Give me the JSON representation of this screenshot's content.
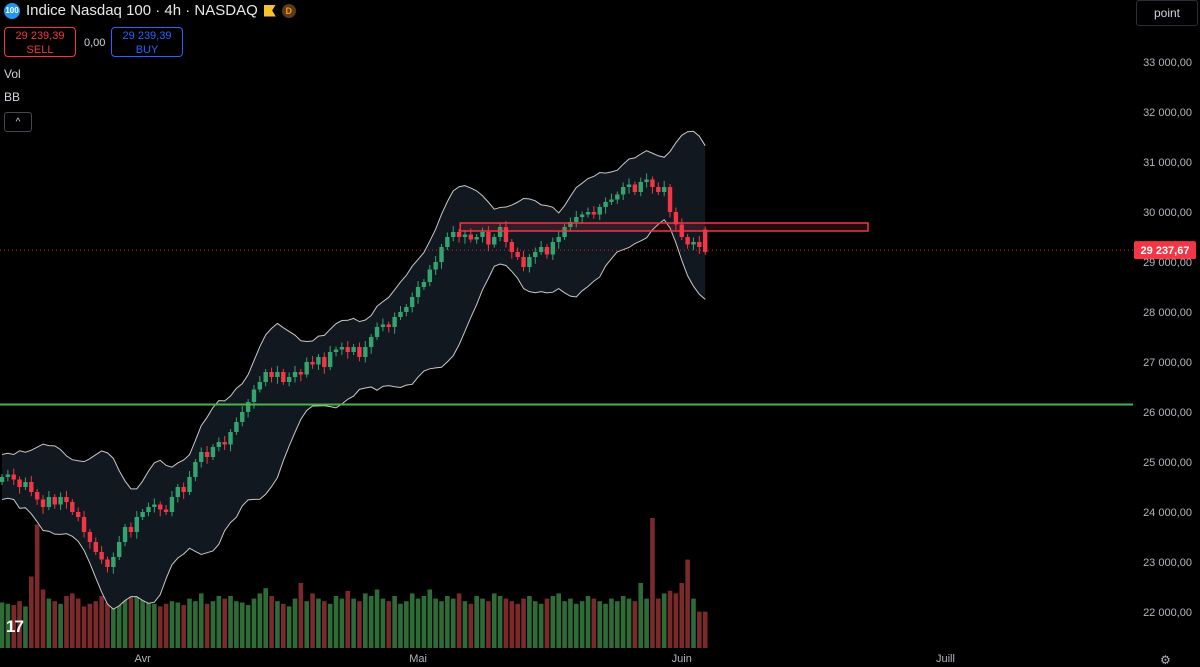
{
  "header": {
    "logo_text": "100",
    "title": "Indice Nasdaq 100 · 4h · NASDAQ",
    "badge": "D",
    "sell_price": "29 239,39",
    "sell_label": "SELL",
    "spread": "0,00",
    "buy_price": "29 239,39",
    "buy_label": "BUY"
  },
  "indicators": {
    "vol": "Vol",
    "bb": "BB",
    "collapse": "^"
  },
  "price_axis": {
    "unit": "point"
  },
  "tv_logo": "17",
  "colors": {
    "up": "#33a46f",
    "down": "#f23645",
    "vol_up": "#2f6b37",
    "vol_down": "#7a2a2a",
    "band": "#c8c8c8",
    "band_fill": "#121820",
    "support": "#4caf50",
    "zone": "#f23645",
    "bg": "#000000"
  },
  "chart_data": {
    "type": "candlestick",
    "title": "Indice Nasdaq 100 · 4h · NASDAQ",
    "ylim": [
      21400,
      33700
    ],
    "y_ticks": [
      "33 000,00",
      "32 000,00",
      "31 000,00",
      "30 000,00",
      "29 000,00",
      "28 000,00",
      "27 000,00",
      "26 000,00",
      "25 000,00",
      "24 000,00",
      "23 000,00",
      "22 000,00"
    ],
    "y_tick_values": [
      33000,
      32000,
      31000,
      30000,
      29000,
      28000,
      27000,
      26000,
      25000,
      24000,
      23000,
      22000
    ],
    "x_ticks": [
      {
        "label": "Avr",
        "bar": 24
      },
      {
        "label": "Mai",
        "bar": 71
      },
      {
        "label": "Juin",
        "bar": 116
      },
      {
        "label": "Juill",
        "bar": 161
      }
    ],
    "bars_visible": 206,
    "current_price": 29237.67,
    "current_price_label": "29 237,67",
    "support_level": 26150,
    "resistance_zone": {
      "from_bar": 84,
      "to_bar": 160,
      "low": 29620,
      "high": 29780
    },
    "closes": [
      24700,
      24750,
      24650,
      24500,
      24600,
      24400,
      24250,
      24100,
      24300,
      24150,
      24300,
      24200,
      24000,
      23900,
      23600,
      23400,
      23200,
      23050,
      22900,
      23100,
      23400,
      23700,
      23600,
      23900,
      24000,
      24100,
      24150,
      24050,
      24000,
      24300,
      24500,
      24400,
      24700,
      25000,
      25200,
      25100,
      25300,
      25400,
      25350,
      25600,
      25800,
      26000,
      26200,
      26450,
      26600,
      26800,
      26700,
      26800,
      26600,
      26700,
      26800,
      26750,
      27000,
      26950,
      27100,
      26900,
      27200,
      27250,
      27300,
      27200,
      27300,
      27100,
      27300,
      27500,
      27700,
      27750,
      27700,
      27900,
      28000,
      28100,
      28300,
      28500,
      28600,
      28850,
      29000,
      29300,
      29500,
      29600,
      29500,
      29550,
      29450,
      29500,
      29600,
      29350,
      29500,
      29700,
      29400,
      29200,
      29100,
      28900,
      29100,
      29200,
      29300,
      29150,
      29400,
      29500,
      29700,
      29800,
      29900,
      29950,
      30000,
      29950,
      30100,
      30200,
      30250,
      30350,
      30500,
      30550,
      30400,
      30600,
      30650,
      30500,
      30400,
      30500,
      30000,
      29750,
      29500,
      29350,
      29400,
      29300,
      29200
    ],
    "opens": [
      24600,
      24700,
      24750,
      24650,
      24500,
      24600,
      24400,
      24250,
      24100,
      24300,
      24150,
      24300,
      24200,
      24000,
      23900,
      23600,
      23400,
      23200,
      23050,
      22900,
      23100,
      23400,
      23700,
      23600,
      23900,
      24000,
      24100,
      24150,
      24050,
      24000,
      24300,
      24500,
      24400,
      24700,
      25000,
      25200,
      25100,
      25300,
      25400,
      25350,
      25600,
      25800,
      26000,
      26200,
      26450,
      26600,
      26800,
      26700,
      26800,
      26600,
      26700,
      26800,
      26750,
      27000,
      26950,
      27100,
      26900,
      27200,
      27250,
      27300,
      27200,
      27300,
      27100,
      27300,
      27500,
      27700,
      27750,
      27700,
      27900,
      28000,
      28100,
      28300,
      28500,
      28600,
      28850,
      29000,
      29300,
      29500,
      29600,
      29500,
      29550,
      29450,
      29500,
      29600,
      29350,
      29500,
      29700,
      29400,
      29200,
      29100,
      28900,
      29100,
      29200,
      29300,
      29150,
      29400,
      29500,
      29700,
      29800,
      29900,
      29950,
      30000,
      29950,
      30100,
      30200,
      30250,
      30350,
      30500,
      30550,
      30400,
      30600,
      30650,
      30500,
      30400,
      30500,
      30000,
      29750,
      29500,
      29350,
      29400,
      29650
    ],
    "bb_upper_start": 25200,
    "bb_upper_end": 31100,
    "volumes": [
      0.35,
      0.34,
      0.33,
      0.36,
      0.32,
      0.55,
      0.95,
      0.45,
      0.38,
      0.36,
      0.34,
      0.4,
      0.42,
      0.38,
      0.32,
      0.34,
      0.36,
      0.4,
      0.35,
      0.34,
      0.38,
      0.62,
      0.48,
      0.45,
      0.4,
      0.36,
      0.34,
      0.32,
      0.34,
      0.36,
      0.35,
      0.33,
      0.38,
      0.36,
      0.42,
      0.34,
      0.36,
      0.4,
      0.38,
      0.4,
      0.36,
      0.35,
      0.33,
      0.38,
      0.42,
      0.46,
      0.4,
      0.36,
      0.34,
      0.32,
      0.38,
      0.5,
      0.36,
      0.42,
      0.38,
      0.36,
      0.34,
      0.4,
      0.38,
      0.44,
      0.38,
      0.36,
      0.42,
      0.4,
      0.45,
      0.38,
      0.36,
      0.4,
      0.34,
      0.36,
      0.42,
      0.38,
      0.4,
      0.45,
      0.38,
      0.36,
      0.4,
      0.38,
      0.42,
      0.36,
      0.34,
      0.4,
      0.38,
      0.36,
      0.42,
      0.4,
      0.38,
      0.36,
      0.34,
      0.38,
      0.4,
      0.36,
      0.34,
      0.38,
      0.4,
      0.42,
      0.36,
      0.38,
      0.34,
      0.36,
      0.4,
      0.38,
      0.36,
      0.34,
      0.38,
      0.36,
      0.4,
      0.38,
      0.36,
      0.5,
      0.38,
      1.0,
      0.38,
      0.42,
      0.44,
      0.42,
      0.5,
      0.68,
      0.38,
      0.28,
      0.28
    ]
  }
}
